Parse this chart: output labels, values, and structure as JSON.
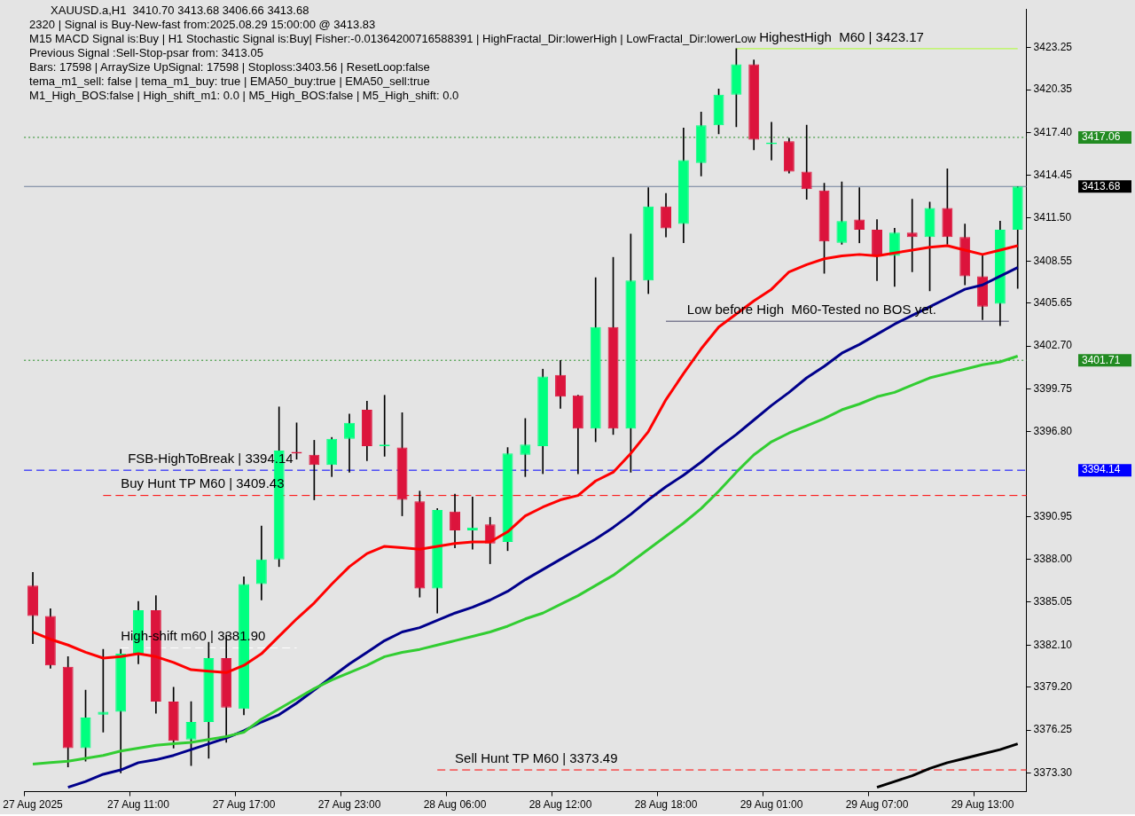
{
  "chart_data": {
    "type": "candlestick",
    "title": "XAUUSD.a,H1  3410.70 3413.68 3406.66 3413.68",
    "categories": [
      "27 Aug 2025",
      null,
      null,
      null,
      null,
      null,
      "27 Aug 11:00",
      null,
      null,
      null,
      null,
      null,
      "27 Aug 17:00",
      null,
      null,
      null,
      null,
      null,
      "27 Aug 23:00",
      null,
      null,
      null,
      null,
      null,
      "28 Aug 06:00",
      null,
      null,
      null,
      null,
      null,
      "28 Aug 12:00",
      null,
      null,
      null,
      null,
      null,
      "28 Aug 18:00",
      null,
      null,
      null,
      null,
      null,
      "29 Aug 01:00",
      null,
      null,
      null,
      null,
      null,
      "29 Aug 07:00",
      null,
      null,
      null,
      null,
      null,
      "29 Aug 13:00",
      null,
      null
    ],
    "ohlc": [
      [
        3386.2,
        3387.1,
        3382.2,
        3384.1
      ],
      [
        3384.1,
        3384.6,
        3380.5,
        3380.7
      ],
      [
        3380.6,
        3381.3,
        3373.7,
        3375.0
      ],
      [
        3375.0,
        3379.0,
        3374.1,
        3377.1
      ],
      [
        3377.3,
        3381.8,
        3376.1,
        3377.5
      ],
      [
        3377.5,
        3381.8,
        3373.3,
        3381.5
      ],
      [
        3381.5,
        3385.1,
        3380.8,
        3384.5
      ],
      [
        3384.5,
        3385.5,
        3377.4,
        3378.2
      ],
      [
        3378.2,
        3379.2,
        3375.0,
        3375.5
      ],
      [
        3375.6,
        3378.2,
        3373.8,
        3376.8
      ],
      [
        3376.8,
        3382.3,
        3374.3,
        3381.2
      ],
      [
        3381.2,
        3382.8,
        3375.4,
        3377.8
      ],
      [
        3377.7,
        3386.8,
        3377.3,
        3386.3
      ],
      [
        3386.3,
        3390.3,
        3385.2,
        3388.0
      ],
      [
        3388.0,
        3398.5,
        3387.5,
        3395.5
      ],
      [
        3395.4,
        3397.4,
        3394.9,
        3395.3
      ],
      [
        3395.2,
        3396.2,
        3392.1,
        3394.5
      ],
      [
        3394.5,
        3396.4,
        3393.7,
        3396.3
      ],
      [
        3396.3,
        3398.0,
        3394.0,
        3397.4
      ],
      [
        3398.3,
        3398.9,
        3394.8,
        3395.8
      ],
      [
        3395.8,
        3399.3,
        3395.1,
        3395.9
      ],
      [
        3395.7,
        3398.1,
        3391.0,
        3392.1
      ],
      [
        3392.0,
        3392.7,
        3385.4,
        3386.0
      ],
      [
        3386.0,
        3391.5,
        3384.3,
        3391.4
      ],
      [
        3391.3,
        3392.5,
        3388.8,
        3390.0
      ],
      [
        3390.0,
        3392.3,
        3388.7,
        3390.2
      ],
      [
        3390.4,
        3390.9,
        3387.7,
        3389.1
      ],
      [
        3389.2,
        3395.7,
        3388.6,
        3395.3
      ],
      [
        3395.2,
        3397.7,
        3393.7,
        3395.9
      ],
      [
        3395.8,
        3401.1,
        3393.9,
        3400.6
      ],
      [
        3400.7,
        3401.7,
        3398.4,
        3399.2
      ],
      [
        3399.3,
        3399.3,
        3393.9,
        3397.0
      ],
      [
        3397.0,
        3407.4,
        3396.1,
        3404.0
      ],
      [
        3404.0,
        3408.8,
        3396.6,
        3397.0
      ],
      [
        3397.0,
        3410.4,
        3394.0,
        3407.2
      ],
      [
        3407.2,
        3413.6,
        3406.3,
        3412.3
      ],
      [
        3412.3,
        3413.2,
        3410.2,
        3410.8
      ],
      [
        3411.1,
        3417.7,
        3409.8,
        3415.5
      ],
      [
        3415.3,
        3418.8,
        3414.4,
        3417.9
      ],
      [
        3417.9,
        3420.4,
        3417.3,
        3420.0
      ],
      [
        3420.0,
        3423.17,
        3417.8,
        3422.1
      ],
      [
        3422.1,
        3422.4,
        3416.2,
        3416.9
      ],
      [
        3416.6,
        3418.1,
        3415.5,
        3416.7
      ],
      [
        3416.8,
        3417.0,
        3414.6,
        3414.7
      ],
      [
        3414.7,
        3417.9,
        3412.8,
        3413.5
      ],
      [
        3413.4,
        3413.9,
        3407.7,
        3409.9
      ],
      [
        3409.8,
        3414.0,
        3409.7,
        3411.3
      ],
      [
        3411.4,
        3413.6,
        3409.8,
        3410.7
      ],
      [
        3410.7,
        3411.4,
        3407.2,
        3408.9
      ],
      [
        3408.9,
        3410.8,
        3406.8,
        3410.5
      ],
      [
        3410.5,
        3412.8,
        3407.8,
        3410.2
      ],
      [
        3410.2,
        3412.6,
        3406.5,
        3412.2
      ],
      [
        3412.2,
        3414.9,
        3409.7,
        3410.2
      ],
      [
        3410.2,
        3411.1,
        3406.9,
        3407.5
      ],
      [
        3407.5,
        3409.0,
        3404.5,
        3405.4
      ],
      [
        3405.6,
        3411.3,
        3404.1,
        3410.7
      ],
      [
        3410.7,
        3413.68,
        3406.66,
        3413.68
      ]
    ],
    "colors": [
      "#dc143c",
      "#dc143c",
      "#dc143c",
      "#00ff7f",
      "#00ff7f",
      "#00ff7f",
      "#00ff7f",
      "#dc143c",
      "#dc143c",
      "#00ff7f",
      "#00ff7f",
      "#dc143c",
      "#00ff7f",
      "#00ff7f",
      "#00ff7f",
      "#dc143c",
      "#dc143c",
      "#00ff7f",
      "#00ff7f",
      "#dc143c",
      "#00ff7f",
      "#dc143c",
      "#dc143c",
      "#00ff7f",
      "#dc143c",
      "#00ff7f",
      "#dc143c",
      "#00ff7f",
      "#00ff7f",
      "#00ff7f",
      "#dc143c",
      "#dc143c",
      "#00ff7f",
      "#dc143c",
      "#00ff7f",
      "#00ff7f",
      "#dc143c",
      "#00ff7f",
      "#00ff7f",
      "#00ff7f",
      "#00ff7f",
      "#dc143c",
      "#00ff7f",
      "#dc143c",
      "#dc143c",
      "#dc143c",
      "#00ff7f",
      "#dc143c",
      "#dc143c",
      "#00ff7f",
      "#dc143c",
      "#00ff7f",
      "#dc143c",
      "#dc143c",
      "#dc143c",
      "#00ff7f",
      "#00ff7f"
    ],
    "series": [
      {
        "type": "line",
        "color": "#32cd32",
        "values": [
          3373.9,
          3374.0,
          3374.1,
          3374.3,
          3374.5,
          3374.8,
          3375.0,
          3375.2,
          3375.3,
          3375.4,
          3375.6,
          3375.8,
          3376.1,
          3377.0,
          3377.7,
          3378.4,
          3379.1,
          3379.7,
          3380.2,
          3380.7,
          3381.3,
          3381.6,
          3381.8,
          3382.1,
          3382.4,
          3382.7,
          3383.0,
          3383.4,
          3383.9,
          3384.3,
          3384.9,
          3385.5,
          3386.2,
          3386.9,
          3387.8,
          3388.7,
          3389.6,
          3390.5,
          3391.5,
          3392.7,
          3394.0,
          3395.2,
          3396.1,
          3396.7,
          3397.2,
          3397.7,
          3398.3,
          3398.7,
          3399.2,
          3399.5,
          3400.0,
          3400.5,
          3400.8,
          3401.1,
          3401.4,
          3401.6,
          3402.0
        ]
      },
      {
        "type": "line",
        "color": "#00008b",
        "values": [
          null,
          null,
          3372.3,
          3372.7,
          3373.2,
          3373.5,
          3374.0,
          3374.2,
          3374.5,
          3374.9,
          3375.3,
          3375.7,
          3376.2,
          3376.8,
          3377.3,
          3378.1,
          3379.0,
          3379.9,
          3380.8,
          3381.6,
          3382.4,
          3383.0,
          3383.3,
          3383.8,
          3384.3,
          3384.7,
          3385.2,
          3385.8,
          3386.6,
          3387.3,
          3388.0,
          3388.7,
          3389.4,
          3390.2,
          3391.1,
          3392.1,
          3393.0,
          3393.8,
          3394.7,
          3395.7,
          3396.6,
          3397.6,
          3398.6,
          3399.5,
          3400.5,
          3401.3,
          3402.2,
          3402.8,
          3403.5,
          3404.2,
          3404.8,
          3405.4,
          3406.0,
          3406.6,
          3406.9,
          3407.5,
          3408.1
        ]
      },
      {
        "type": "line",
        "color": "#ff0000",
        "values": [
          3383.0,
          3382.5,
          3382.1,
          3381.6,
          3381.2,
          3381.3,
          3381.5,
          3381.3,
          3380.9,
          3380.4,
          3380.3,
          3380.2,
          3380.7,
          3381.5,
          3382.7,
          3383.9,
          3385.0,
          3386.3,
          3387.5,
          3388.4,
          3388.9,
          3388.8,
          3388.7,
          3388.9,
          3389.1,
          3389.2,
          3389.2,
          3389.9,
          3391.0,
          3391.6,
          3392.1,
          3392.4,
          3393.4,
          3394.0,
          3395.3,
          3396.8,
          3399.0,
          3400.8,
          3402.5,
          3404.0,
          3404.9,
          3405.8,
          3406.6,
          3407.8,
          3408.3,
          3408.7,
          3408.9,
          3409.0,
          3408.9,
          3409.1,
          3409.3,
          3409.5,
          3409.6,
          3409.3,
          3409.0,
          3409.3,
          3409.6
        ]
      },
      {
        "type": "line",
        "color": "#000000",
        "values": [
          null,
          null,
          null,
          null,
          null,
          null,
          null,
          null,
          null,
          null,
          null,
          null,
          null,
          null,
          null,
          null,
          null,
          null,
          null,
          null,
          null,
          null,
          null,
          null,
          null,
          null,
          null,
          null,
          null,
          null,
          null,
          null,
          null,
          null,
          null,
          null,
          null,
          null,
          null,
          null,
          null,
          null,
          null,
          null,
          null,
          null,
          null,
          null,
          3372.3,
          3372.7,
          3373.1,
          3373.6,
          3374.0,
          3374.3,
          3374.6,
          3374.9,
          3375.3
        ]
      }
    ],
    "marker": "none",
    "ylim": [
      3372.0,
      3425.9
    ],
    "yticks": [
      {
        "value": 3373.3,
        "label": "3373.30"
      },
      {
        "value": 3376.25,
        "label": "3376.25"
      },
      {
        "value": 3379.2,
        "label": "3379.20"
      },
      {
        "value": 3382.1,
        "label": "3382.10"
      },
      {
        "value": 3385.05,
        "label": "3385.05"
      },
      {
        "value": 3388.0,
        "label": "3388.00"
      },
      {
        "value": 3390.95,
        "label": "3390.95"
      },
      {
        "value": 3396.8,
        "label": "3396.80"
      },
      {
        "value": 3399.75,
        "label": "3399.75"
      },
      {
        "value": 3402.7,
        "label": "3402.70"
      },
      {
        "value": 3405.65,
        "label": "3405.65"
      },
      {
        "value": 3408.55,
        "label": "3408.55"
      },
      {
        "value": 3411.5,
        "label": "3411.50"
      },
      {
        "value": 3414.45,
        "label": "3414.45"
      },
      {
        "value": 3417.4,
        "label": "3417.40"
      },
      {
        "value": 3420.35,
        "label": "3420.35"
      },
      {
        "value": 3423.25,
        "label": "3423.25"
      }
    ],
    "ref_lines": [
      {
        "axis": "y",
        "value": 3423.17,
        "label": "HighestHigh  M60 | 3423.17",
        "color": "#adff2f",
        "line_style": "solid"
      },
      {
        "axis": "y",
        "value": 3417.06,
        "color": "#228b22",
        "line_style": "dotted"
      },
      {
        "axis": "y",
        "value": 3413.68,
        "color": "#6d7f99",
        "line_style": "solid"
      },
      {
        "axis": "y",
        "value": 3404.4,
        "label": "Low before High  M60-Tested no BOS yet.",
        "color": "#4b4b6b",
        "line_style": "solid"
      },
      {
        "axis": "y",
        "value": 3401.71,
        "color": "#228b22",
        "line_style": "dotted"
      },
      {
        "axis": "y",
        "value": 3394.14,
        "label": "FSB-HighToBreak | 3394.14",
        "color": "#0000ff",
        "line_style": "dashed"
      },
      {
        "axis": "y",
        "value": 3392.4,
        "label": "Buy Hunt TP M60 | 3409.43",
        "color": "#ff0000",
        "line_style": "dashed"
      },
      {
        "axis": "y",
        "value": 3381.9,
        "label": "High-shift m60 | 3381.90",
        "color": "#ffffff",
        "line_style": "dashed"
      },
      {
        "axis": "y",
        "value": 3373.5,
        "label": "Sell Hunt TP M60 | 3373.49",
        "color": "#ff0000",
        "line_style": "dashed"
      }
    ],
    "annotations": [
      "2320 | Signal is Buy-New-fast from:2025.08.29 15:00:00 @ 3413.83",
      "M15 MACD Signal is:Buy | H1 Stochastic Signal is:Buy| Fisher:-0.01364200716588391 | HighFractal_Dir:lowerHigh | LowFractal_Dir:lowerLow",
      "Previous Signal :Sell-Stop-psar from: 3413.05",
      "Bars: 17598 | ArraySize UpSignal: 17598 | Stoploss:3403.56 | ResetLoop:false",
      "tema_m1_sell: false | tema_m1_buy: true | EMA50_buy:true | EMA50_sell:true",
      "M1_High_BOS:false | High_shift_m1: 0.0 | M5_High_BOS:false | M5_High_shift: 0.0",
      "3417.06",
      "3413.68",
      "3401.71",
      "3394.14"
    ]
  }
}
